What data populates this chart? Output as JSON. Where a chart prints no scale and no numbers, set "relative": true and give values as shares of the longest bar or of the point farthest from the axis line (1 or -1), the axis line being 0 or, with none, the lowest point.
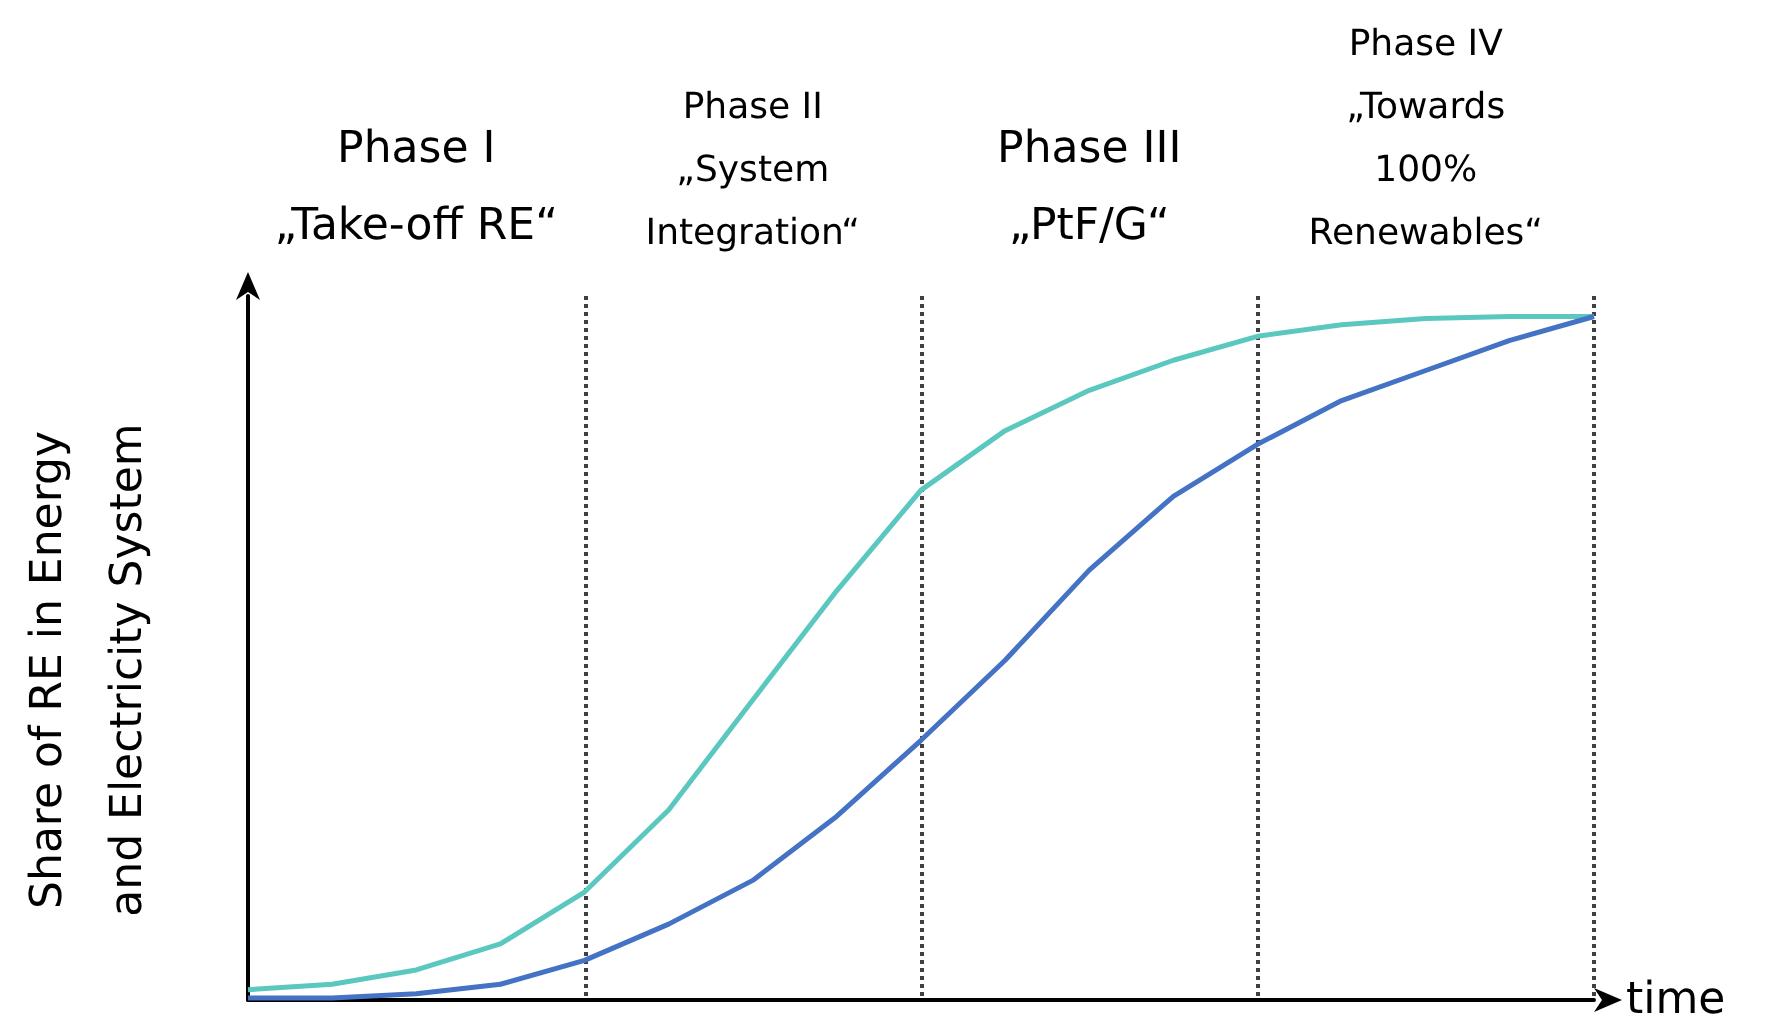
{
  "chart_data": {
    "type": "line",
    "relative": true,
    "ylabel": "Share of RE in Energy\nand Electricity System",
    "xlabel": "time",
    "categories": [
      null,
      null,
      null,
      null,
      null,
      null,
      null,
      null,
      null,
      null,
      null,
      null,
      null,
      null,
      null,
      null,
      null
    ],
    "grid": "x",
    "marker": "none",
    "line_style": "solid",
    "series": [
      {
        "color": "#5bc8c0",
        "values": [
          0.015,
          0.023,
          0.044,
          0.082,
          0.158,
          0.278,
          0.439,
          0.599,
          0.746,
          0.833,
          0.892,
          0.936,
          0.971,
          0.988,
          0.997,
          1,
          1
        ]
      },
      {
        "color": "#4472c4",
        "values": [
          0.003,
          0.003,
          0.009,
          0.023,
          0.058,
          0.111,
          0.175,
          0.269,
          0.38,
          0.497,
          0.629,
          0.737,
          0.813,
          0.877,
          0.921,
          0.965,
          1
        ]
      }
    ],
    "annotations": [
      "Phase I\n„Take-off RE“",
      "Phase II\n„System\nIntegration“",
      "Phase III\n„PtF/G“",
      "Phase IV\n„Towards\n100%\nRenewables“"
    ]
  }
}
